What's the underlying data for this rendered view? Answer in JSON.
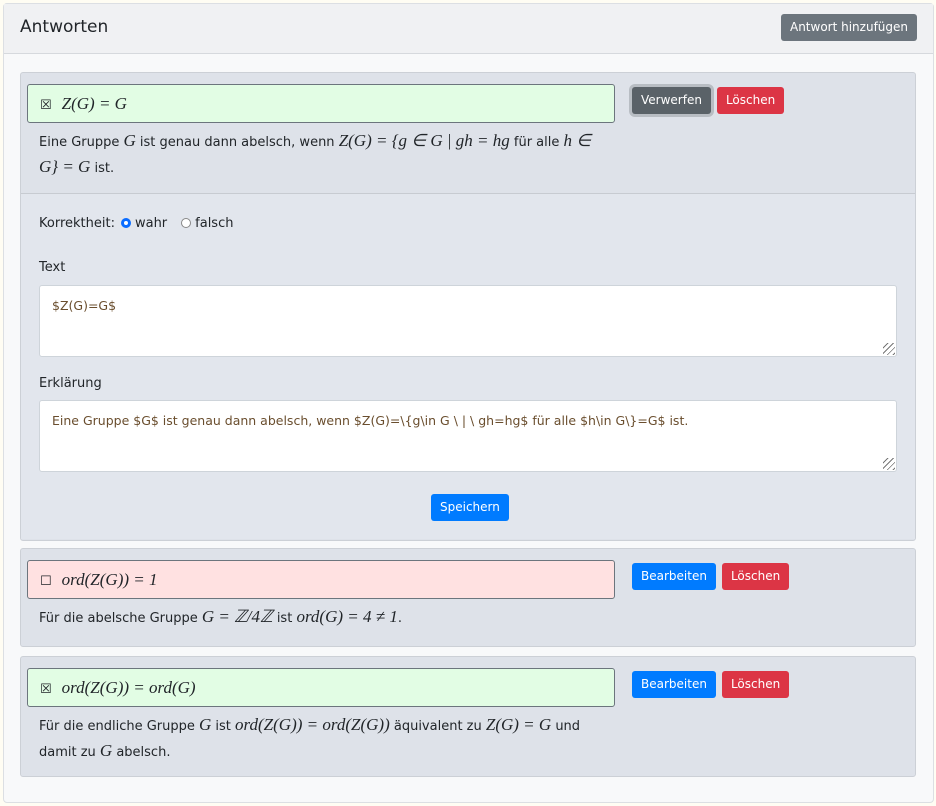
{
  "header": {
    "title": "Antworten",
    "add_button": "Antwort hinzufügen"
  },
  "colors": {
    "correct": "#e2fde4",
    "incorrect": "#ffe1e1",
    "primary": "#007bff",
    "danger": "#dc3545"
  },
  "answers": [
    {
      "checked": true,
      "mark": "☒",
      "text": "Z(G) = G",
      "explanation": [
        {
          "t": "Eine Gruppe "
        },
        {
          "m": "G"
        },
        {
          "t": " ist genau dann abelsch, wenn "
        },
        {
          "m": "Z(G) = {g ∈ G | gh = hg"
        },
        {
          "t": " für alle "
        },
        {
          "m": "h ∈ G} = G"
        },
        {
          "t": " ist."
        }
      ],
      "buttons": [
        "Verwerfen",
        "Löschen"
      ]
    },
    {
      "checked": false,
      "mark": "☐",
      "text": "ord(Z(G)) = 1",
      "explanation": [
        {
          "t": "Für die abelsche Gruppe "
        },
        {
          "m": "G = ℤ/4ℤ"
        },
        {
          "t": " ist "
        },
        {
          "m": "ord(G) = 4 ≠ 1"
        },
        {
          "t": "."
        }
      ],
      "buttons": [
        "Bearbeiten",
        "Löschen"
      ]
    },
    {
      "checked": true,
      "mark": "☒",
      "text": "ord(Z(G)) = ord(G)",
      "explanation": [
        {
          "t": "Für die endliche Gruppe "
        },
        {
          "m": "G"
        },
        {
          "t": " ist "
        },
        {
          "m": "ord(Z(G)) = ord(Z(G))"
        },
        {
          "t": " äquivalent zu "
        },
        {
          "m": "Z(G) = G"
        },
        {
          "t": " und damit zu "
        },
        {
          "m": "G"
        },
        {
          "t": " abelsch."
        }
      ],
      "buttons": [
        "Bearbeiten",
        "Löschen"
      ]
    }
  ],
  "form": {
    "correctness_label": "Korrektheit:",
    "options": [
      "wahr",
      "falsch"
    ],
    "selected": "wahr",
    "text_label": "Text",
    "text_value": "$Z(G)=G$",
    "explanation_label": "Erklärung",
    "explanation_value": "Eine Gruppe $G$ ist genau dann abelsch, wenn $Z(G)=\\{g\\in G \\ | \\ gh=hg$ für alle $h\\in G\\}=G$ ist.",
    "save_button": "Speichern"
  }
}
